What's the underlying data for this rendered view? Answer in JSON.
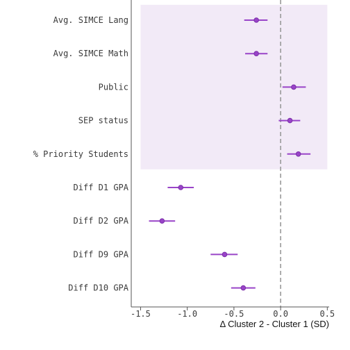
{
  "chart_data": {
    "type": "forest",
    "title": "",
    "xlabel": "Δ Cluster 2 - Cluster 1 (SD)",
    "ylabel": "",
    "xlim": [
      -1.6,
      0.52
    ],
    "xticks": [
      -1.5,
      -1.0,
      -0.5,
      0.0,
      0.5
    ],
    "xtick_labels": [
      "-1.5",
      "-1.0",
      "-0.5",
      "0.0",
      "0.5"
    ],
    "reference_line_x": 0.0,
    "grid": false,
    "highlight_band": {
      "categories": [
        "Avg. SIMCE Lang",
        "Avg. SIMCE Math",
        "Public",
        "SEP status",
        "% Priority Students"
      ],
      "x_range": [
        -1.5,
        0.5
      ],
      "color": "#f2eaf7"
    },
    "colors": {
      "point": "#9944c8",
      "point_edge": "#7b2fa8",
      "ci_line": "#9944c8",
      "reference_line": "#999999",
      "axis": "#555555"
    },
    "categories": [
      "Avg. SIMCE Lang",
      "Avg. SIMCE Math",
      "Public",
      "SEP status",
      "% Priority Students",
      "Diff D1 GPA",
      "Diff D2 GPA",
      "Diff D9 GPA",
      "Diff D10 GPA"
    ],
    "estimates": [
      -0.26,
      -0.26,
      0.14,
      0.1,
      0.19,
      -1.07,
      -1.27,
      -0.6,
      -0.4
    ],
    "ci_low": [
      -0.39,
      -0.38,
      0.02,
      -0.02,
      0.07,
      -1.21,
      -1.41,
      -0.75,
      -0.53
    ],
    "ci_high": [
      -0.14,
      -0.14,
      0.27,
      0.21,
      0.32,
      -0.93,
      -1.13,
      -0.46,
      -0.27
    ]
  }
}
